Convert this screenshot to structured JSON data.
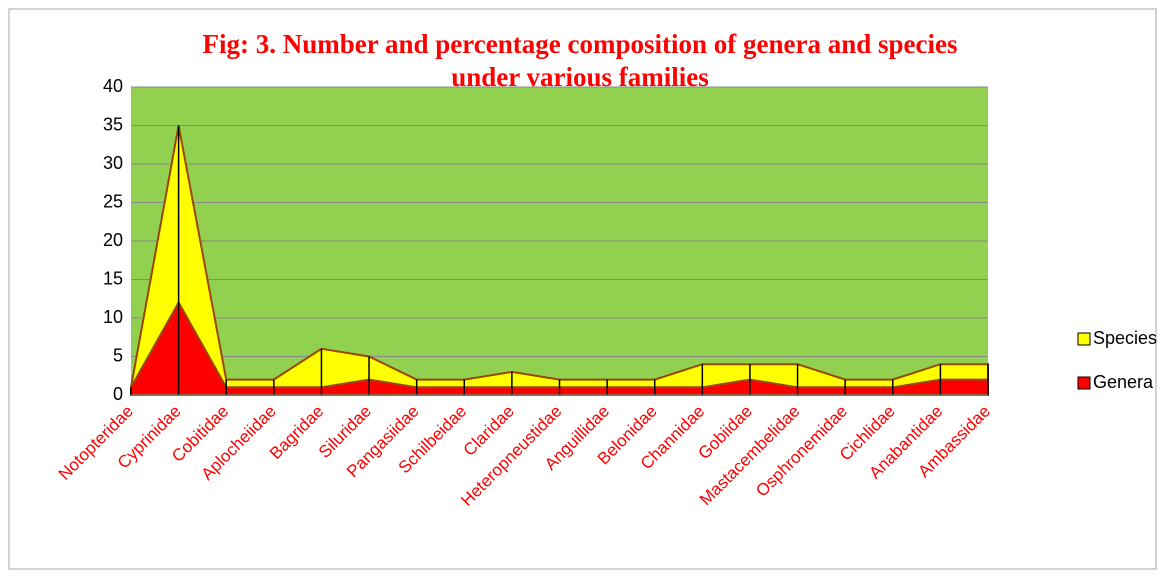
{
  "chart_data": {
    "type": "area",
    "title": "Fig: 3. Number and percentage composition of genera and species under various families",
    "categories": [
      "Notopteridae",
      "Cyprinidae",
      "Cobitidae",
      "Aplocheiidae",
      "Bagridae",
      "Siluridae",
      "Pangasiidae",
      "Schilbeidae",
      "Claridae",
      "Heteropneustidae",
      "Anguillidae",
      "Belonidae",
      "Channidae",
      "Gobiidae",
      "Mastacembelidae",
      "Osphronemidae",
      "Cichlidae",
      "Anabantidae",
      "Ambassidae"
    ],
    "series": [
      {
        "name": "Species",
        "color": "#ffff00",
        "values": [
          1,
          35,
          2,
          2,
          6,
          5,
          2,
          2,
          3,
          2,
          2,
          2,
          4,
          4,
          4,
          2,
          2,
          4,
          4
        ]
      },
      {
        "name": "Genera",
        "color": "#ff0000",
        "values": [
          1,
          12,
          1,
          1,
          1,
          2,
          1,
          1,
          1,
          1,
          1,
          1,
          1,
          2,
          1,
          1,
          1,
          2,
          2
        ]
      }
    ],
    "ylim": [
      0,
      40
    ],
    "yticks": [
      0,
      5,
      10,
      15,
      20,
      25,
      30,
      35,
      40
    ],
    "grid": true,
    "drop_lines": true,
    "plot_background": "#92d050",
    "legend": "right"
  }
}
